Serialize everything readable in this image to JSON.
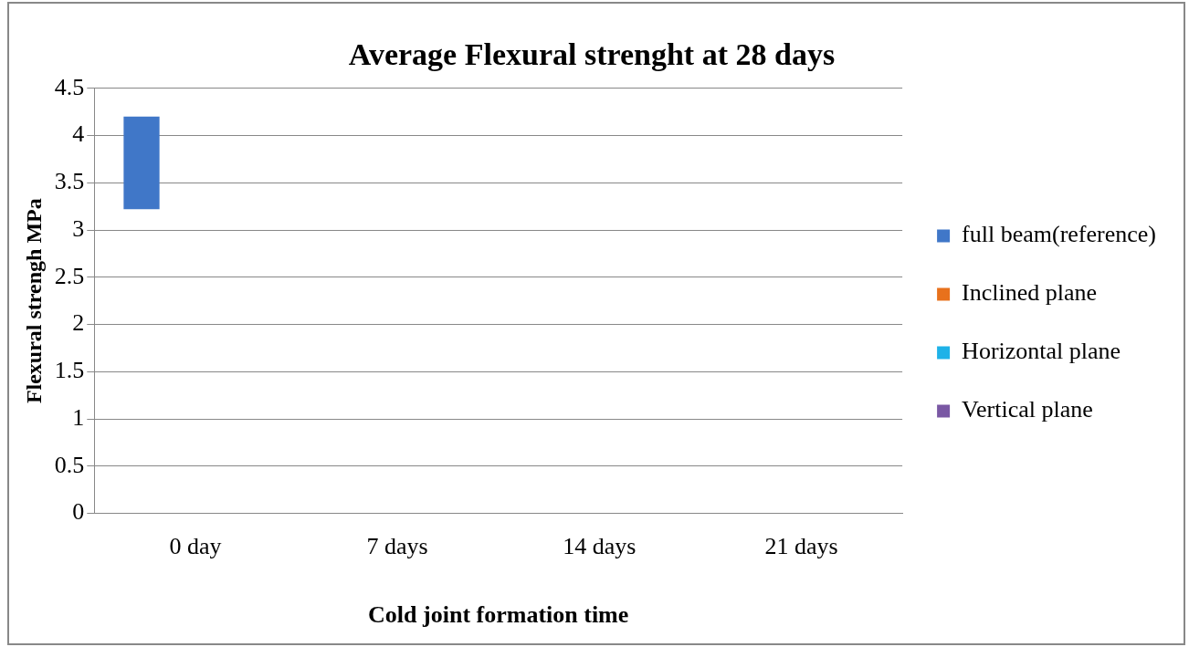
{
  "chart_data": {
    "type": "bar",
    "title": "Average Flexural strenght at 28 days",
    "xlabel": "Cold joint formation time",
    "ylabel": "Flexural strengh MPa",
    "categories": [
      "0 day",
      "7 days",
      "14 days",
      "21 days"
    ],
    "series": [
      {
        "name": "full beam(reference)",
        "color": "#4077c8",
        "values": [
          0.98,
          null,
          null,
          null
        ],
        "base": [
          3.22,
          null,
          null,
          null
        ]
      },
      {
        "name": "Inclined plane",
        "color": "#e8711c",
        "values": [
          null,
          null,
          null,
          null
        ]
      },
      {
        "name": "Horizontal plane",
        "color": "#1eb2e8",
        "values": [
          null,
          null,
          null,
          null
        ]
      },
      {
        "name": "Vertical plane",
        "color": "#7a58a4",
        "values": [
          null,
          null,
          null,
          null
        ]
      }
    ],
    "ylim": [
      0,
      4.5
    ],
    "yticks": [
      0,
      0.5,
      1,
      1.5,
      2,
      2.5,
      3,
      3.5,
      4,
      4.5
    ],
    "grid": "y",
    "legend": "right"
  }
}
